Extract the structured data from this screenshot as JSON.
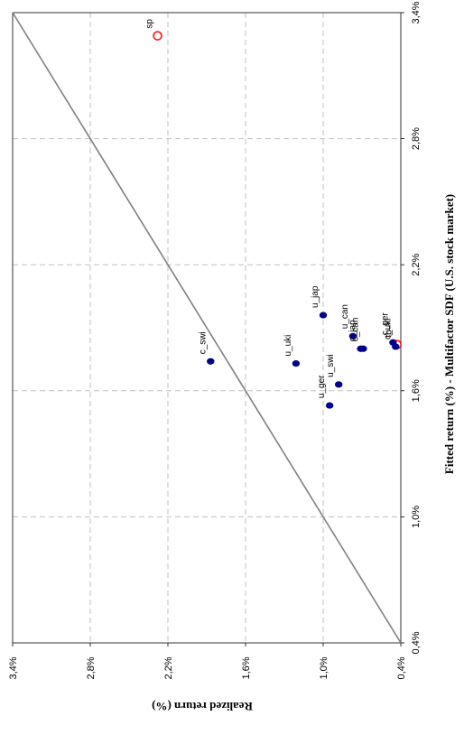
{
  "chart_data": {
    "type": "scatter",
    "orientation": "rotated-90-clockwise",
    "xlabel": "Fitted return (%) - Multifactor SDF (U.S. stock market)",
    "ylabel": "Realized return (%)",
    "xlim": [
      0.4,
      3.4
    ],
    "ylim": [
      0.4,
      3.4
    ],
    "x_ticks": [
      "0,4%",
      "1,0%",
      "1,6%",
      "2,2%",
      "2,8%",
      "3,4%"
    ],
    "y_ticks": [
      "0,4%",
      "1,0%",
      "1,6%",
      "2,2%",
      "2,8%",
      "3,4%"
    ],
    "x_tick_values": [
      0.4,
      1.0,
      1.6,
      2.2,
      2.8,
      3.4
    ],
    "y_tick_values": [
      0.4,
      1.0,
      1.6,
      2.2,
      2.8,
      3.4
    ],
    "grid": true,
    "reference_line": "45-degree",
    "colors": {
      "filled": "#00008b",
      "hollow": "#ff0000",
      "line": "#808080",
      "grid": "#c0c0c0"
    },
    "points": [
      {
        "label": "sp",
        "x": 3.29,
        "y": 2.28,
        "style": "hollow"
      },
      {
        "label": "tb",
        "x": 1.82,
        "y": 0.43,
        "style": "hollow"
      },
      {
        "label": "c_swi",
        "x": 1.74,
        "y": 1.87,
        "style": "filled"
      },
      {
        "label": "u_jap",
        "x": 1.96,
        "y": 1.0,
        "style": "filled"
      },
      {
        "label": "u_can",
        "x": 1.86,
        "y": 0.77,
        "style": "filled"
      },
      {
        "label": "c_ger",
        "x": 1.83,
        "y": 0.46,
        "style": "filled"
      },
      {
        "label": "c_uki",
        "x": 1.81,
        "y": 0.44,
        "style": "filled"
      },
      {
        "label": "u_uki",
        "x": 1.73,
        "y": 1.21,
        "style": "filled"
      },
      {
        "label": "c_jap",
        "x": 1.8,
        "y": 0.71,
        "style": "filled"
      },
      {
        "label": "c_can",
        "x": 1.8,
        "y": 0.69,
        "style": "filled"
      },
      {
        "label": "u_swi",
        "x": 1.63,
        "y": 0.88,
        "style": "filled"
      },
      {
        "label": "u_ger",
        "x": 1.53,
        "y": 0.95,
        "style": "filled"
      }
    ]
  }
}
